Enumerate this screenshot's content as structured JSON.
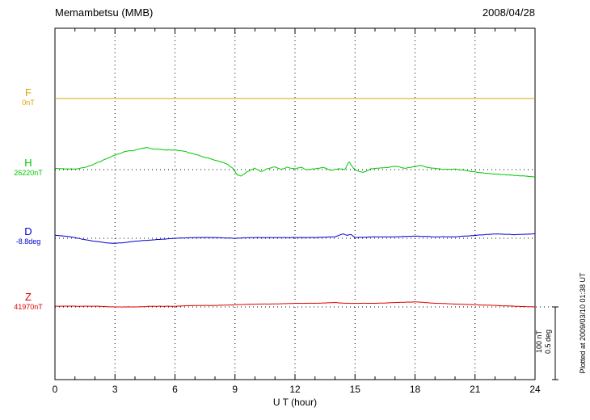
{
  "chart_data": {
    "type": "line",
    "title": "Memambetsu (MMB)",
    "date": "2008/04/28",
    "xlabel": "U T (hour)",
    "x_range": [
      0,
      24
    ],
    "x_ticks": [
      0,
      3,
      6,
      9,
      12,
      15,
      18,
      21,
      24
    ],
    "grid": "dotted vertical at 3h intervals, dotted horizontal baselines per component",
    "legend_position": "left baselines",
    "plotted_at": "Plotted at 2009/03/10 01:38 UT",
    "scale_bar": {
      "label_nT": "100 nT",
      "label_deg": "0.5 deg",
      "nT": 100,
      "deg": 0.5
    },
    "series": [
      {
        "label": "F",
        "base_label": "0nT",
        "baseline_value": 0,
        "unit": "nT",
        "color": "#d9a600",
        "jitter": 0,
        "x": [
          0,
          24
        ],
        "y": [
          0,
          0
        ]
      },
      {
        "label": "H",
        "base_label": "26220nT",
        "baseline_value": 26220,
        "unit": "nT",
        "color": "#00c800",
        "jitter": 1.2,
        "x": [
          0,
          0.5,
          1,
          1.5,
          2,
          2.5,
          3,
          3.5,
          4,
          4.3,
          4.6,
          5,
          5.5,
          6,
          6.5,
          7,
          7.5,
          8,
          8.5,
          8.9,
          9.1,
          9.3,
          9.6,
          10,
          10.3,
          10.6,
          11,
          11.3,
          11.6,
          12,
          12.3,
          12.6,
          13,
          13.4,
          13.8,
          14.2,
          14.5,
          14.7,
          14.9,
          15.1,
          15.4,
          15.8,
          16.2,
          16.6,
          17,
          17.5,
          18,
          18.3,
          18.6,
          19,
          19.5,
          20,
          20.5,
          21,
          21.5,
          22,
          22.5,
          23,
          23.5,
          24
        ],
        "y": [
          2,
          1,
          1,
          3,
          8,
          14,
          20,
          25,
          27,
          29,
          30,
          28,
          27,
          27,
          25,
          21,
          17,
          13,
          9,
          2,
          -7,
          -9,
          -3,
          2,
          -3,
          1,
          4,
          0,
          3,
          1,
          3,
          0,
          1,
          3,
          -1,
          1,
          0,
          11,
          3,
          -2,
          -4,
          1,
          2,
          3,
          5,
          2,
          4,
          6,
          3,
          2,
          0,
          1,
          -1,
          -3,
          -5,
          -6,
          -7,
          -8,
          -9,
          -10
        ]
      },
      {
        "label": "D",
        "base_label": "-8.8deg",
        "baseline_value": -8.8,
        "unit": "deg",
        "color": "#0000d0",
        "jitter": 0.003,
        "x": [
          0,
          0.5,
          1,
          1.5,
          2,
          2.5,
          3,
          3.5,
          4,
          5,
          6,
          7,
          8,
          9,
          10,
          11,
          12,
          13,
          14,
          14.4,
          14.6,
          14.8,
          15,
          16,
          17,
          18,
          19,
          20,
          21,
          22,
          23,
          24
        ],
        "y": [
          0.02,
          0.015,
          0.005,
          -0.01,
          -0.02,
          -0.03,
          -0.035,
          -0.03,
          -0.02,
          -0.01,
          0,
          0.005,
          0.005,
          0,
          0.005,
          0.005,
          0.005,
          0.005,
          0.01,
          0.03,
          0.02,
          0.025,
          0.005,
          0.01,
          0.01,
          0.015,
          0.01,
          0.01,
          0.02,
          0.03,
          0.025,
          0.03
        ]
      },
      {
        "label": "Z",
        "base_label": "41970nT",
        "baseline_value": 41970,
        "unit": "nT",
        "color": "#e00000",
        "jitter": 0.5,
        "x": [
          0,
          1,
          2,
          3,
          4,
          5,
          6,
          7,
          8,
          9,
          10,
          11,
          12,
          13,
          14,
          14.5,
          15,
          16,
          17,
          18,
          18.5,
          19,
          20,
          21,
          22,
          23,
          24
        ],
        "y": [
          1,
          1,
          1,
          0,
          0,
          1,
          1,
          2,
          2,
          3,
          4,
          4,
          5,
          5,
          6,
          5,
          5,
          5,
          6,
          7,
          6,
          5,
          4,
          3,
          2,
          1,
          0
        ]
      }
    ]
  }
}
